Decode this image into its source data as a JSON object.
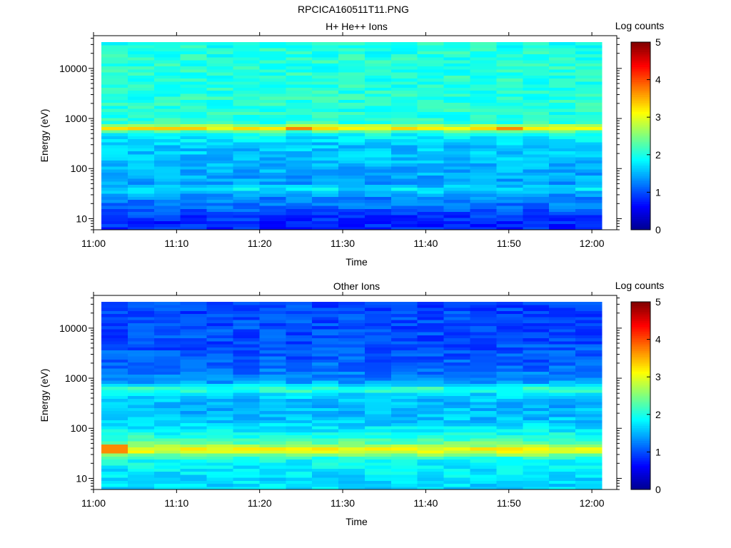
{
  "figure_title": "RPCICA160511T11.PNG",
  "colormap": [
    "#00008f",
    "#0000ff",
    "#007fff",
    "#00ffff",
    "#7fff7f",
    "#ffff00",
    "#ff7f00",
    "#ff0000",
    "#7f0000"
  ],
  "chart_data": [
    {
      "type": "heatmap",
      "title": "H+ He++ Ions",
      "xlabel": "Time",
      "ylabel": "Energy (eV)",
      "xticks": [
        "11:00",
        "11:10",
        "11:20",
        "11:30",
        "11:40",
        "11:50",
        "12:00"
      ],
      "yticks": [
        "10",
        "100",
        "1000",
        "10000"
      ],
      "y_scale": "log",
      "ylim": [
        6,
        45000
      ],
      "x_range": [
        "11:00",
        "12:03"
      ],
      "colorbar": {
        "label": "Log counts",
        "range": [
          0,
          5
        ],
        "ticks": [
          "0",
          "1",
          "2",
          "3",
          "4",
          "5"
        ]
      },
      "time_bins": [
        "11:01",
        "11:04",
        "11:07",
        "11:10",
        "11:14",
        "11:17",
        "11:20",
        "11:23",
        "11:27",
        "11:30",
        "11:33",
        "11:36",
        "11:40",
        "11:43",
        "11:46",
        "11:49",
        "11:53",
        "11:56",
        "11:59"
      ],
      "energy_profile_eV_logcounts": [
        [
          8,
          0.8
        ],
        [
          12,
          0.9
        ],
        [
          18,
          1.2
        ],
        [
          28,
          1.3
        ],
        [
          40,
          1.8
        ],
        [
          50,
          1.4
        ],
        [
          100,
          1.5
        ],
        [
          200,
          1.6
        ],
        [
          300,
          1.6
        ],
        [
          480,
          1.9
        ],
        [
          560,
          2.3
        ],
        [
          640,
          3.2
        ],
        [
          720,
          2.8
        ],
        [
          820,
          2.1
        ],
        [
          1000,
          2.05
        ],
        [
          2000,
          2.05
        ],
        [
          5000,
          2.05
        ],
        [
          10000,
          2.05
        ],
        [
          40000,
          2.0
        ]
      ],
      "notes": "Strong band near 600-700 eV (log counts ~3-3.5)"
    },
    {
      "type": "heatmap",
      "title": "Other Ions",
      "xlabel": "Time",
      "ylabel": "Energy (eV)",
      "xticks": [
        "11:00",
        "11:10",
        "11:20",
        "11:30",
        "11:40",
        "11:50",
        "12:00"
      ],
      "yticks": [
        "10",
        "100",
        "1000",
        "10000"
      ],
      "y_scale": "log",
      "ylim": [
        6,
        45000
      ],
      "x_range": [
        "11:00",
        "12:03"
      ],
      "colorbar": {
        "label": "Log counts",
        "range": [
          0,
          5
        ],
        "ticks": [
          "0",
          "1",
          "2",
          "3",
          "4",
          "5"
        ]
      },
      "time_bins": [
        "11:01",
        "11:04",
        "11:07",
        "11:10",
        "11:14",
        "11:17",
        "11:20",
        "11:23",
        "11:27",
        "11:30",
        "11:33",
        "11:36",
        "11:40",
        "11:43",
        "11:46",
        "11:49",
        "11:53",
        "11:56",
        "11:59"
      ],
      "energy_profile_eV_logcounts": [
        [
          8,
          1.7
        ],
        [
          15,
          1.8
        ],
        [
          22,
          1.9
        ],
        [
          28,
          2.2
        ],
        [
          33,
          2.9
        ],
        [
          40,
          3.1
        ],
        [
          50,
          2.4
        ],
        [
          80,
          1.9
        ],
        [
          150,
          1.6
        ],
        [
          300,
          1.5
        ],
        [
          480,
          1.7
        ],
        [
          600,
          2.2
        ],
        [
          700,
          1.9
        ],
        [
          900,
          1.3
        ],
        [
          2000,
          1.1
        ],
        [
          5000,
          1.0
        ],
        [
          10000,
          1.0
        ],
        [
          40000,
          0.95
        ]
      ],
      "notes": "Strong band near 30-45 eV; secondary band near 600 eV; first time bin at 30-45 eV ~3.7"
    }
  ]
}
